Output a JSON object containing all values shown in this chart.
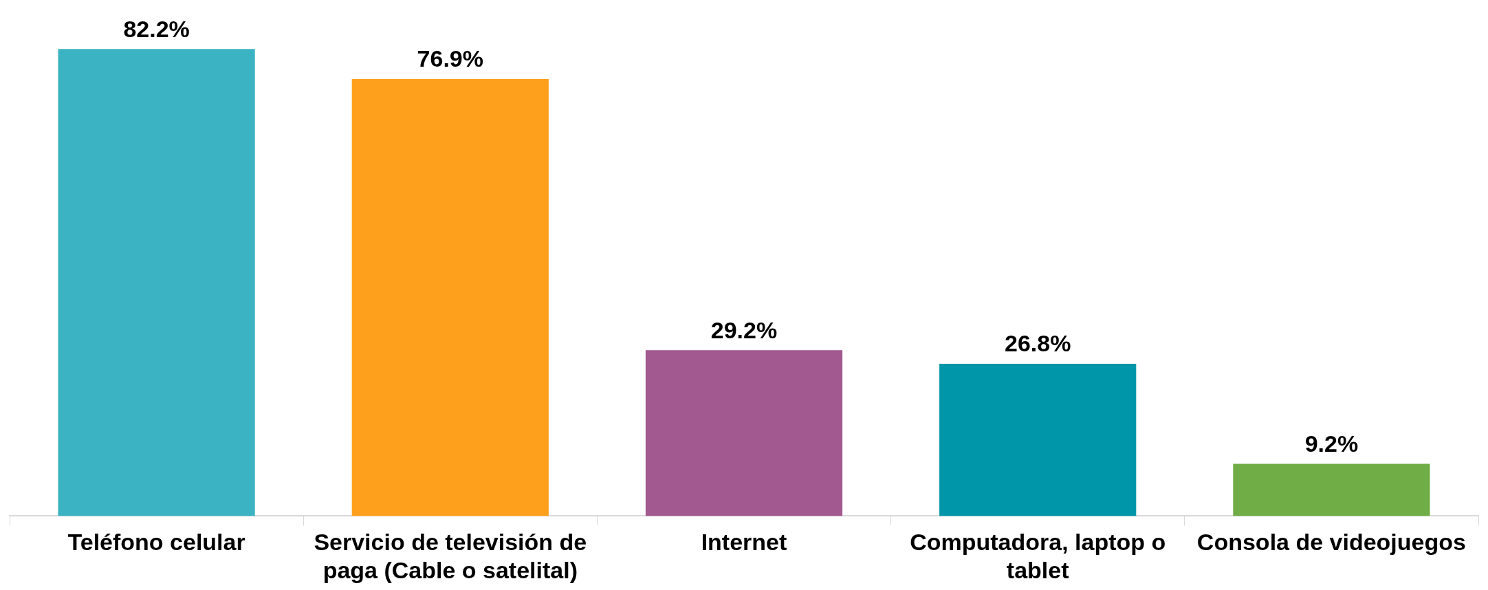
{
  "chart_data": {
    "type": "bar",
    "categories": [
      "Teléfono celular",
      "Servicio de televisión de paga (Cable o satelital)",
      "Internet",
      "Computadora, laptop o tablet",
      "Consola de videojuegos"
    ],
    "values": [
      82.2,
      76.9,
      29.2,
      26.8,
      9.2
    ],
    "value_labels": [
      "82.2%",
      "76.9%",
      "29.2%",
      "26.8%",
      "9.2%"
    ],
    "colors": [
      "#3bb3c3",
      "#ffa01c",
      "#a2598f",
      "#0096aa",
      "#70ad47"
    ],
    "grid": false,
    "legend": false
  }
}
